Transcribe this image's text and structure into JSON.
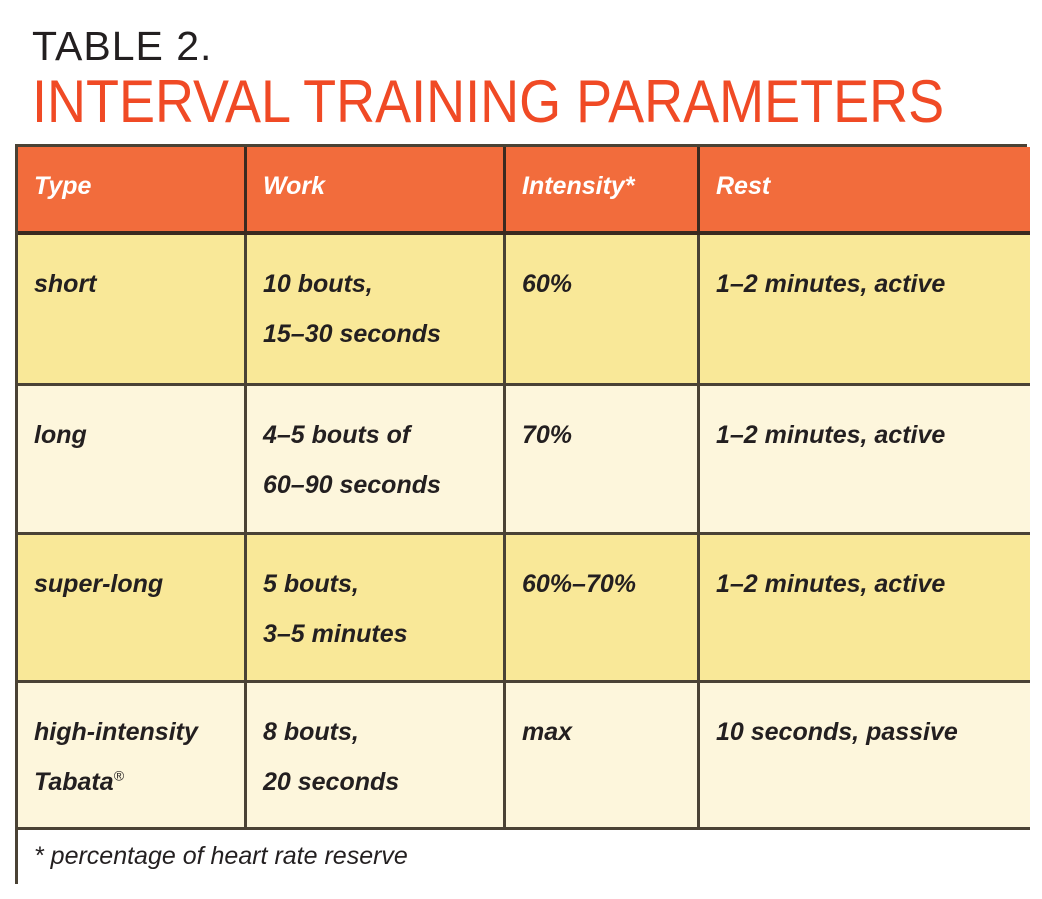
{
  "title": {
    "label": "TABLE 2.",
    "heading": "INTERVAL TRAINING PARAMETERS"
  },
  "table": {
    "headers": [
      "Type",
      "Work",
      "Intensity*",
      "Rest"
    ],
    "rows": [
      {
        "type": [
          "short"
        ],
        "work": [
          "10 bouts,",
          "15–30 seconds"
        ],
        "intensity": "60%",
        "rest": "1–2 minutes, active"
      },
      {
        "type": [
          "long"
        ],
        "work": [
          "4–5 bouts of",
          "60–90 seconds"
        ],
        "intensity": "70%",
        "rest": "1–2 minutes, active"
      },
      {
        "type": [
          "super-long"
        ],
        "work": [
          "5 bouts,",
          "3–5 minutes"
        ],
        "intensity": "60%–70%",
        "rest": "1–2 minutes, active"
      },
      {
        "type": [
          "high-intensity",
          "Tabata"
        ],
        "type_mark": "®",
        "work": [
          "8 bouts,",
          "20 seconds"
        ],
        "intensity": "max",
        "rest": "10 seconds, passive"
      }
    ],
    "footnote": "* percentage of heart rate reserve"
  },
  "colors": {
    "title": "#f04a25",
    "header": "#f26c3c",
    "row_odd": "#f9e898",
    "row_even": "#fdf6dc",
    "border": "#4a4235"
  }
}
